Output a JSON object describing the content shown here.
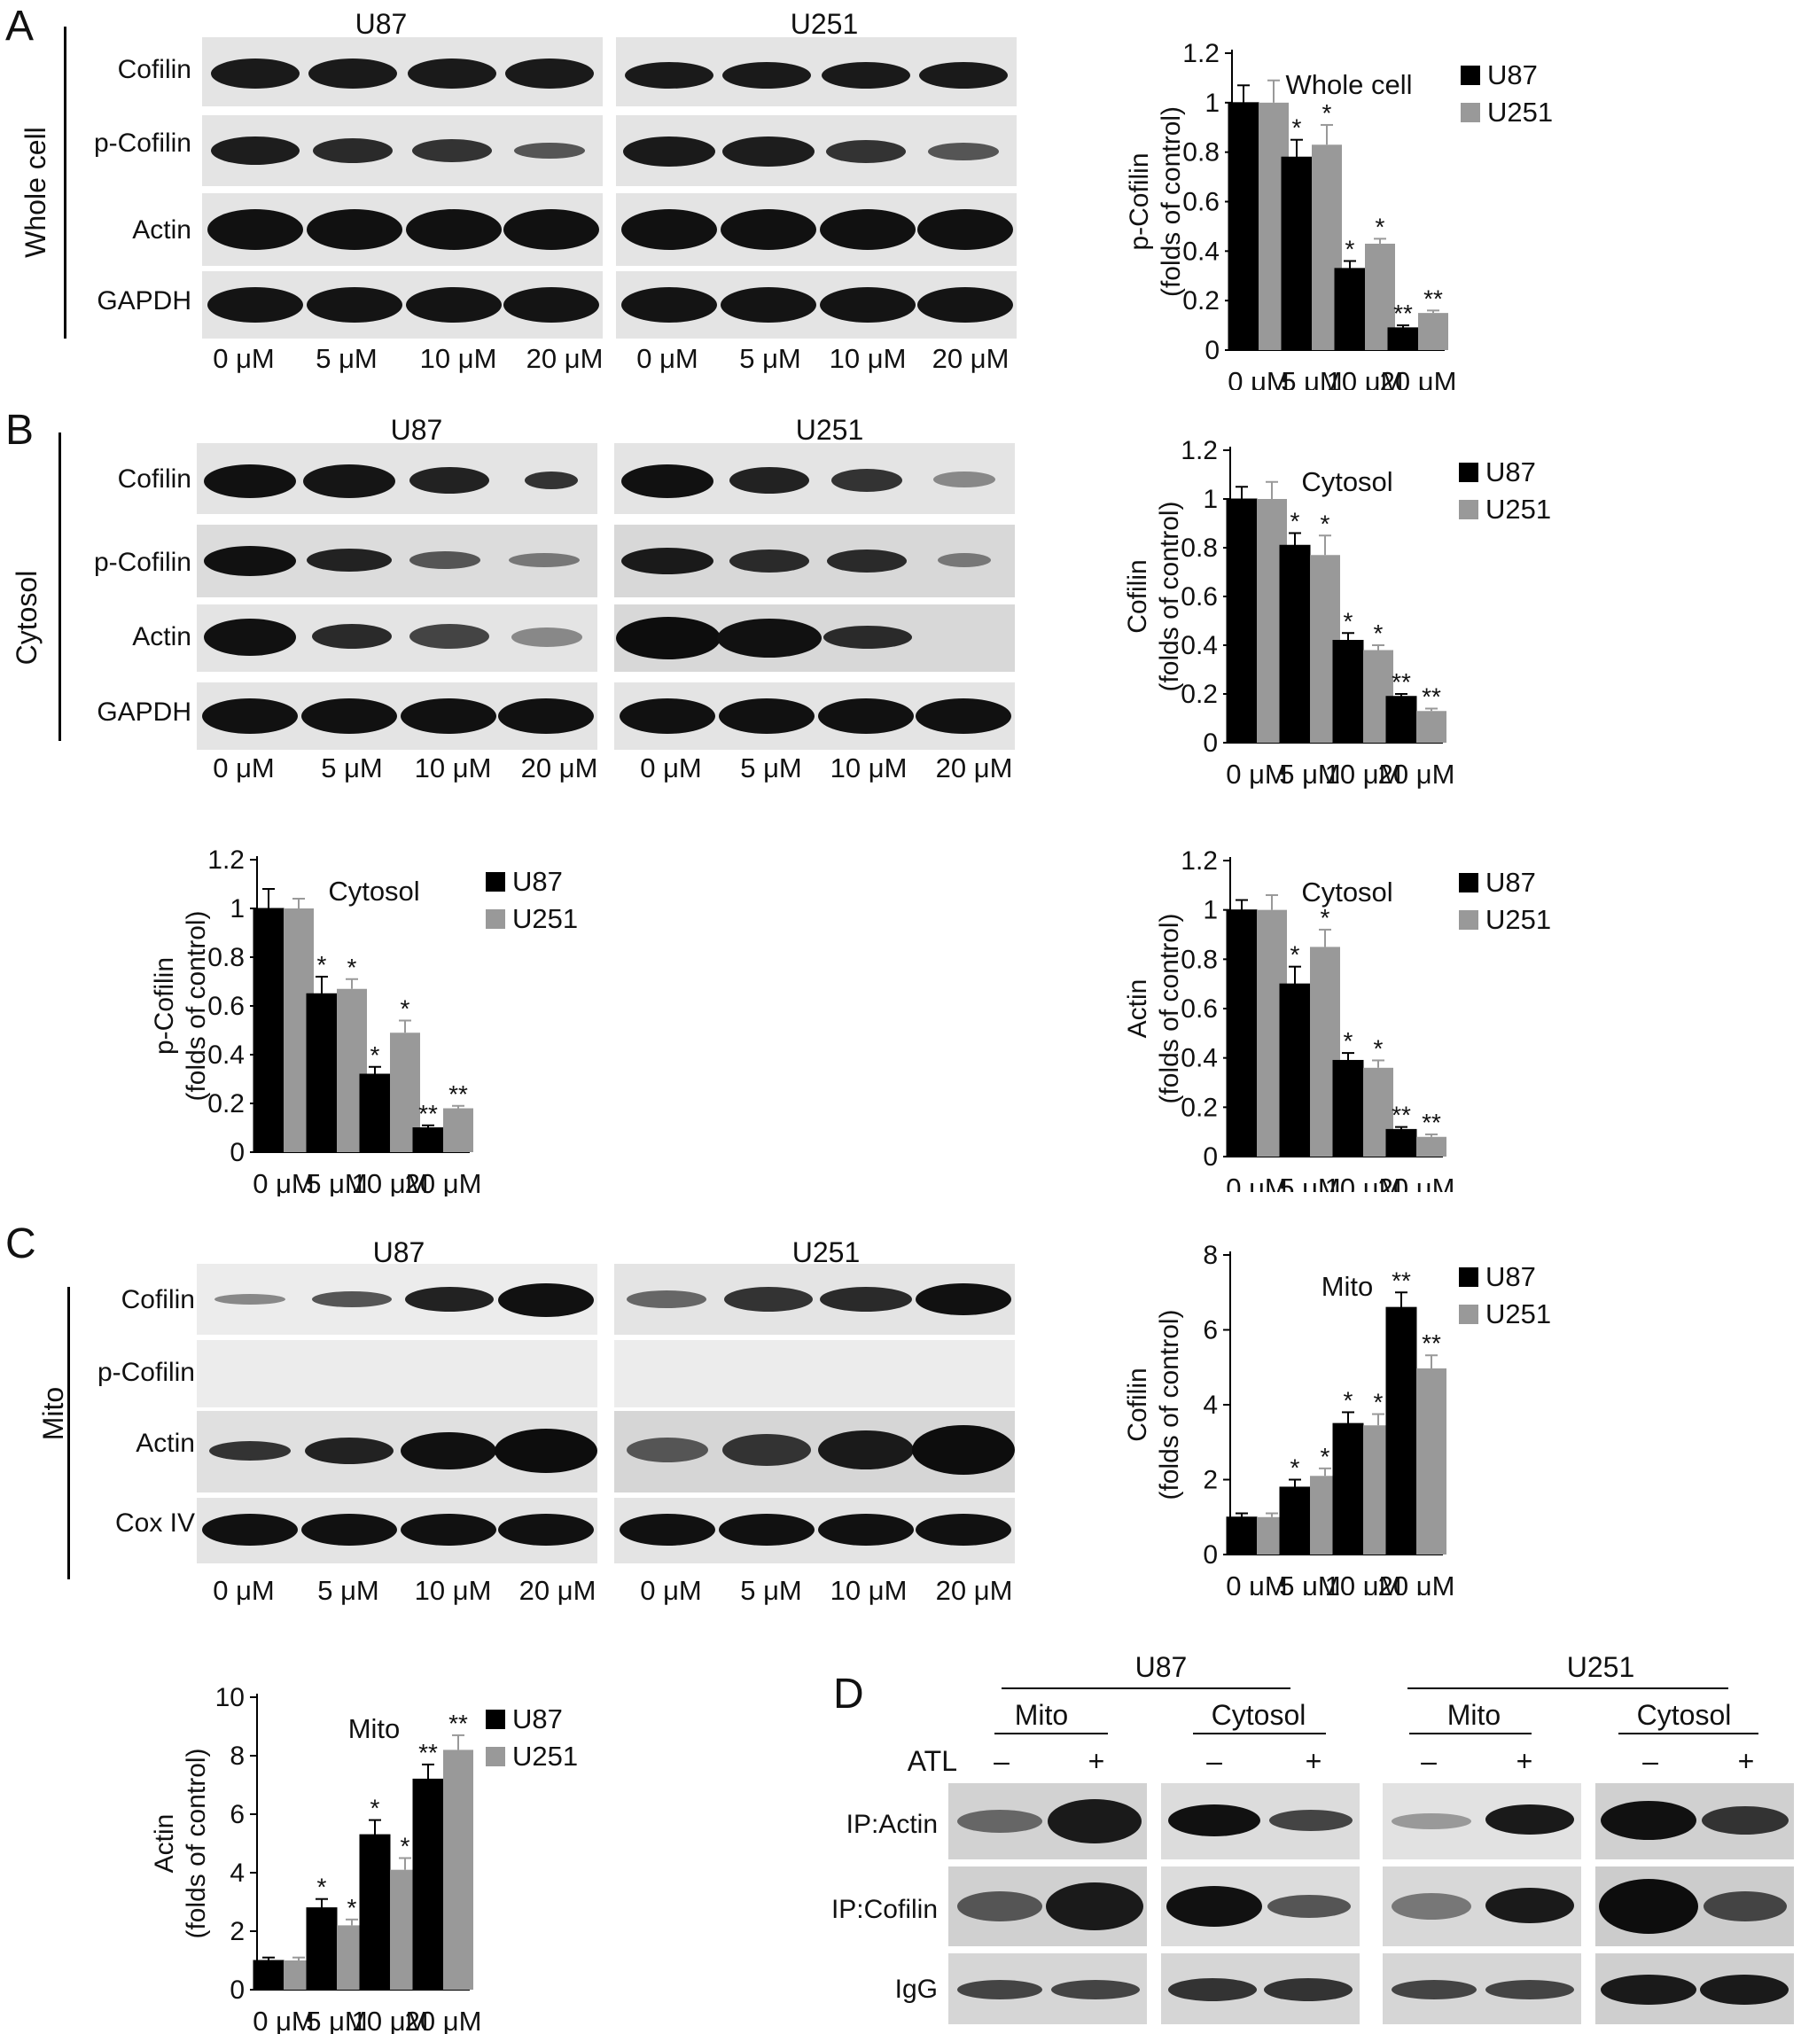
{
  "panels": {
    "A": "A",
    "B": "B",
    "C": "C",
    "D": "D"
  },
  "blots": {
    "A": {
      "fraction": "Whole cell",
      "cell_lines": [
        "U87",
        "U251"
      ],
      "rows": [
        "Cofilin",
        "p-Cofilin",
        "Actin",
        "GAPDH"
      ],
      "conc": [
        "0 μM",
        "5 μM",
        "10 μM",
        "20 μM"
      ]
    },
    "B": {
      "fraction": "Cytosol",
      "cell_lines": [
        "U87",
        "U251"
      ],
      "rows": [
        "Cofilin",
        "p-Cofilin",
        "Actin",
        "GAPDH"
      ],
      "conc": [
        "0 μM",
        "5 μM",
        "10 μM",
        "20 μM"
      ]
    },
    "C": {
      "fraction": "Mito",
      "cell_lines": [
        "U87",
        "U251"
      ],
      "rows": [
        "Cofilin",
        "p-Cofilin",
        "Actin",
        "Cox IV"
      ],
      "conc": [
        "0 μM",
        "5 μM",
        "10 μM",
        "20 μM"
      ]
    }
  },
  "ip_panel": {
    "cell_lines": [
      "U87",
      "U251"
    ],
    "fractions": [
      "Mito",
      "Cytosol",
      "Mito",
      "Cytosol"
    ],
    "treatment_label": "ATL",
    "signs": [
      "–",
      "+",
      "–",
      "+",
      "–",
      "+",
      "–",
      "+"
    ],
    "rows": [
      "IP:Actin",
      "IP:Cofilin",
      "IgG"
    ]
  },
  "chart_data": [
    {
      "type": "bar",
      "title": "Whole cell",
      "ylabel": "p-Cofilin (folds of control)",
      "ylabel_lines": [
        "p-Cofilin",
        "(folds of control)"
      ],
      "categories": [
        "0 μM",
        "5 μM",
        "10 μM",
        "20 μM"
      ],
      "ylim": [
        0,
        1.2
      ],
      "yticks": [
        "0",
        "0.2",
        "0.4",
        "0.6",
        "0.8",
        "1",
        "1.2"
      ],
      "series": [
        {
          "name": "U87",
          "color": "#000000",
          "values": [
            1.0,
            0.78,
            0.33,
            0.09
          ],
          "errors": [
            0.07,
            0.07,
            0.03,
            0.01
          ],
          "sig": [
            "",
            "*",
            "*",
            "**"
          ]
        },
        {
          "name": "U251",
          "color": "#999999",
          "values": [
            1.0,
            0.83,
            0.43,
            0.15
          ],
          "errors": [
            0.09,
            0.08,
            0.02,
            0.01
          ],
          "sig": [
            "",
            "*",
            "*",
            "**"
          ]
        }
      ]
    },
    {
      "type": "bar",
      "title": "Cytosol",
      "ylabel": "Cofilin (folds of control)",
      "ylabel_lines": [
        "Cofilin",
        "(folds of control)"
      ],
      "categories": [
        "0 μM",
        "5 μM",
        "10 μM",
        "20 μM"
      ],
      "ylim": [
        0,
        1.2
      ],
      "yticks": [
        "0",
        "0.2",
        "0.4",
        "0.6",
        "0.8",
        "1",
        "1.2"
      ],
      "series": [
        {
          "name": "U87",
          "color": "#000000",
          "values": [
            1.0,
            0.81,
            0.42,
            0.19
          ],
          "errors": [
            0.05,
            0.05,
            0.03,
            0.01
          ],
          "sig": [
            "",
            "*",
            "*",
            "**"
          ]
        },
        {
          "name": "U251",
          "color": "#999999",
          "values": [
            1.0,
            0.77,
            0.38,
            0.13
          ],
          "errors": [
            0.07,
            0.08,
            0.02,
            0.01
          ],
          "sig": [
            "",
            "*",
            "*",
            "**"
          ]
        }
      ]
    },
    {
      "type": "bar",
      "title": "Cytosol",
      "ylabel": "p-Cofilin (folds of control)",
      "ylabel_lines": [
        "p-Cofilin",
        "(folds of control)"
      ],
      "categories": [
        "0 μM",
        "5 μM",
        "10 μM",
        "20 μM"
      ],
      "ylim": [
        0,
        1.2
      ],
      "yticks": [
        "0",
        "0.2",
        "0.4",
        "0.6",
        "0.8",
        "1",
        "1.2"
      ],
      "series": [
        {
          "name": "U87",
          "color": "#000000",
          "values": [
            1.0,
            0.65,
            0.32,
            0.1
          ],
          "errors": [
            0.08,
            0.07,
            0.03,
            0.01
          ],
          "sig": [
            "",
            "*",
            "*",
            "**"
          ]
        },
        {
          "name": "U251",
          "color": "#999999",
          "values": [
            1.0,
            0.67,
            0.49,
            0.18
          ],
          "errors": [
            0.04,
            0.04,
            0.05,
            0.01
          ],
          "sig": [
            "",
            "*",
            "*",
            "**"
          ]
        }
      ]
    },
    {
      "type": "bar",
      "title": "Cytosol",
      "ylabel": "Actin (folds of control)",
      "ylabel_lines": [
        "Actin",
        "(folds of control)"
      ],
      "categories": [
        "0 μM",
        "5 μM",
        "10 μM",
        "20 μM"
      ],
      "ylim": [
        0,
        1.2
      ],
      "yticks": [
        "0",
        "0.2",
        "0.4",
        "0.6",
        "0.8",
        "1",
        "1.2"
      ],
      "series": [
        {
          "name": "U87",
          "color": "#000000",
          "values": [
            1.0,
            0.7,
            0.39,
            0.11
          ],
          "errors": [
            0.04,
            0.07,
            0.03,
            0.01
          ],
          "sig": [
            "",
            "*",
            "*",
            "**"
          ]
        },
        {
          "name": "U251",
          "color": "#999999",
          "values": [
            1.0,
            0.85,
            0.36,
            0.08
          ],
          "errors": [
            0.06,
            0.07,
            0.03,
            0.01
          ],
          "sig": [
            "",
            "*",
            "*",
            "**"
          ]
        }
      ]
    },
    {
      "type": "bar",
      "title": "Mito",
      "ylabel": "Cofilin (folds of control)",
      "ylabel_lines": [
        "Cofilin",
        "(folds of control)"
      ],
      "categories": [
        "0 μM",
        "5 μM",
        "10 μM",
        "20 μM"
      ],
      "ylim": [
        0,
        8
      ],
      "yticks": [
        "0",
        "2",
        "4",
        "6",
        "8"
      ],
      "series": [
        {
          "name": "U87",
          "color": "#000000",
          "values": [
            1.0,
            1.8,
            3.5,
            6.6
          ],
          "errors": [
            0.1,
            0.2,
            0.3,
            0.4
          ],
          "sig": [
            "",
            "*",
            "*",
            "**"
          ]
        },
        {
          "name": "U251",
          "color": "#999999",
          "values": [
            1.0,
            2.1,
            3.45,
            4.97
          ],
          "errors": [
            0.1,
            0.2,
            0.3,
            0.35
          ],
          "sig": [
            "",
            "*",
            "*",
            "**"
          ]
        }
      ]
    },
    {
      "type": "bar",
      "title": "Mito",
      "ylabel": "Actin (folds of control)",
      "ylabel_lines": [
        "Actin",
        "(folds of control)"
      ],
      "categories": [
        "0 μM",
        "5 μM",
        "10 μM",
        "20 μM"
      ],
      "ylim": [
        0,
        10
      ],
      "yticks": [
        "0",
        "2",
        "4",
        "6",
        "8",
        "10"
      ],
      "series": [
        {
          "name": "U87",
          "color": "#000000",
          "values": [
            1.0,
            2.8,
            5.3,
            7.2
          ],
          "errors": [
            0.1,
            0.3,
            0.5,
            0.5
          ],
          "sig": [
            "",
            "*",
            "*",
            "**"
          ]
        },
        {
          "name": "U251",
          "color": "#999999",
          "values": [
            1.0,
            2.2,
            4.1,
            8.2
          ],
          "errors": [
            0.1,
            0.2,
            0.4,
            0.5
          ],
          "sig": [
            "",
            "*",
            "*",
            "**"
          ]
        }
      ]
    }
  ]
}
